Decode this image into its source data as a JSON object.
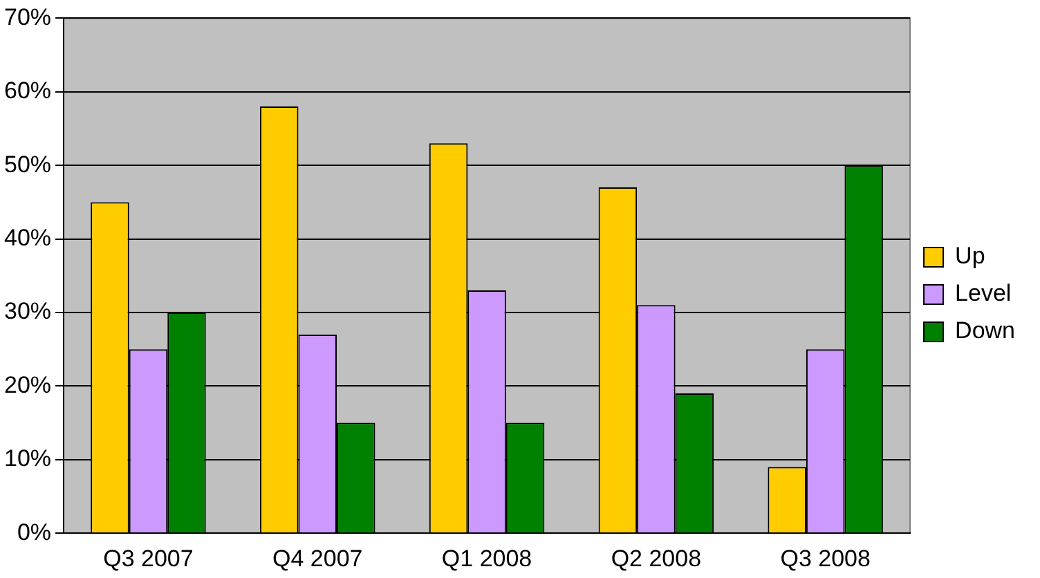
{
  "chart_data": {
    "type": "bar",
    "categories": [
      "Q3 2007",
      "Q4 2007",
      "Q1 2008",
      "Q2 2008",
      "Q3 2008"
    ],
    "series": [
      {
        "name": "Up",
        "color": "#ffcc00",
        "values": [
          45,
          58,
          53,
          47,
          9
        ]
      },
      {
        "name": "Level",
        "color": "#cc99ff",
        "values": [
          25,
          27,
          33,
          31,
          25
        ]
      },
      {
        "name": "Down",
        "color": "#008000",
        "values": [
          30,
          15,
          15,
          19,
          50
        ]
      }
    ],
    "ylim": [
      0,
      70
    ],
    "yticks": [
      {
        "value": 0,
        "label": "0%"
      },
      {
        "value": 10,
        "label": "10%"
      },
      {
        "value": 20,
        "label": "20%"
      },
      {
        "value": 30,
        "label": "30%"
      },
      {
        "value": 40,
        "label": "40%"
      },
      {
        "value": 50,
        "label": "50%"
      },
      {
        "value": 60,
        "label": "60%"
      },
      {
        "value": 70,
        "label": "70%"
      }
    ],
    "grid": "y",
    "legend": "right"
  }
}
